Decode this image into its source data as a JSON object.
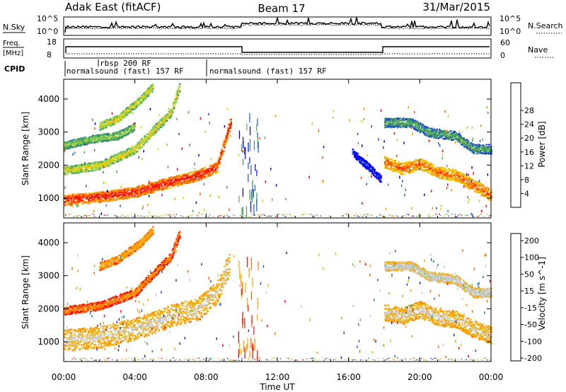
{
  "header": {
    "station": "Adak East (fitACF)",
    "beam": "Beam 17",
    "date": "31/Mar/2015"
  },
  "noise_panel": {
    "left_label": "N.Sky",
    "left_ticks": [
      "10^5",
      "10^0"
    ],
    "right_label": "N.Search",
    "right_ticks": [
      "10^5",
      "10^0"
    ]
  },
  "freq_panel": {
    "left_label_1": "Freq.",
    "left_label_2": "[MHz]",
    "left_ticks": [
      "18",
      "8"
    ],
    "right_label": "Nave",
    "right_ticks": [
      "60",
      "0"
    ]
  },
  "cpid": {
    "label": "CPID",
    "modes": [
      {
        "text": "normalsound (fast) 157 RF",
        "start_hour": 0
      },
      {
        "text": "rbsp 200 RF",
        "start_hour": 2
      },
      {
        "text": "normalsound (fast) 157 RF",
        "start_hour": 8.2
      }
    ]
  },
  "colors": {
    "power": [
      "#0000ff",
      "#2255cc",
      "#3a8a6a",
      "#4fae5a",
      "#a6d44a",
      "#f2d000",
      "#ff9a00",
      "#ff5500",
      "#ff0000"
    ],
    "velocity": [
      "#ff0000",
      "#ff6a00",
      "#ff9a00",
      "#f0b000",
      "#c8c8c8",
      "#c8c8c8",
      "#66cc33",
      "#2a8a6a",
      "#2255cc",
      "#1a2a99"
    ]
  },
  "chart_data": [
    {
      "type": "heatmap",
      "panel": "power",
      "xlabel": "Time UT",
      "ylabel": "Slant Range [km]",
      "xlim": [
        0,
        24
      ],
      "ylim": [
        400,
        4600
      ],
      "x_ticks": [
        "00:00",
        "04:00",
        "08:00",
        "12:00",
        "16:00",
        "20:00",
        "00:00"
      ],
      "y_ticks": [
        "1000",
        "2000",
        "3000",
        "4000"
      ],
      "colorbar": {
        "label": "Power [dB]",
        "ticks": [
          "4",
          "8",
          "12",
          "16",
          "20",
          "24",
          "28"
        ]
      },
      "bands": [
        {
          "name": "band-a",
          "points": [
            [
              0,
              950
            ],
            [
              2,
              1050
            ],
            [
              4,
              1200
            ],
            [
              6,
              1500
            ],
            [
              7.5,
              1700
            ],
            [
              8.6,
              1950
            ],
            [
              9.4,
              3400
            ]
          ],
          "width": 200,
          "level": 8
        },
        {
          "name": "band-b",
          "points": [
            [
              0,
              1850
            ],
            [
              2,
              2000
            ],
            [
              4,
              2500
            ],
            [
              6,
              3600
            ],
            [
              6.5,
              4400
            ]
          ],
          "width": 160,
          "level": 5
        },
        {
          "name": "band-c",
          "points": [
            [
              2,
              3200
            ],
            [
              3,
              3400
            ],
            [
              4.3,
              4000
            ],
            [
              5,
              4400
            ]
          ],
          "width": 150,
          "level": 5
        },
        {
          "name": "band-d",
          "points": [
            [
              0,
              2600
            ],
            [
              1.5,
              2800
            ],
            [
              3,
              2900
            ],
            [
              4,
              3200
            ]
          ],
          "width": 150,
          "level": 4
        },
        {
          "name": "band-e",
          "points": [
            [
              18,
              2100
            ],
            [
              19,
              1900
            ],
            [
              20,
              2050
            ],
            [
              21,
              1800
            ],
            [
              22,
              1700
            ],
            [
              23,
              1400
            ],
            [
              24,
              1100
            ]
          ],
          "width": 220,
          "level": 7
        },
        {
          "name": "band-f",
          "points": [
            [
              18,
              3300
            ],
            [
              19.5,
              3300
            ],
            [
              20.5,
              3000
            ],
            [
              22,
              2900
            ],
            [
              23,
              2500
            ],
            [
              24,
              2500
            ]
          ],
          "width": 180,
          "level": 3
        },
        {
          "name": "band-g",
          "points": [
            [
              16.2,
              2400
            ],
            [
              17,
              2000
            ],
            [
              17.8,
              1600
            ]
          ],
          "width": 140,
          "level": 1
        }
      ]
    },
    {
      "type": "heatmap",
      "panel": "velocity",
      "xlabel": "Time UT",
      "ylabel": "Slant Range [km]",
      "xlim": [
        0,
        24
      ],
      "ylim": [
        400,
        4600
      ],
      "x_ticks": [
        "00:00",
        "04:00",
        "08:00",
        "12:00",
        "16:00",
        "20:00",
        "00:00"
      ],
      "y_ticks": [
        "1000",
        "2000",
        "3000",
        "4000"
      ],
      "colorbar": {
        "label": "Velocity [m s^-1]",
        "ticks": [
          "200",
          "100",
          "50",
          "15",
          "-15",
          "-50",
          "-100",
          "-200"
        ]
      },
      "bands": [
        {
          "name": "band-a",
          "points": [
            [
              0,
              1050
            ],
            [
              2,
              1150
            ],
            [
              4,
              1400
            ],
            [
              6,
              1800
            ],
            [
              7.5,
              2000
            ],
            [
              8.6,
              2500
            ],
            [
              9.3,
              3400
            ]
          ],
          "width": 420,
          "level": 4
        },
        {
          "name": "band-b",
          "points": [
            [
              0,
              1950
            ],
            [
              2,
              2100
            ],
            [
              4,
              2500
            ],
            [
              6,
              3600
            ],
            [
              6.5,
              4300
            ]
          ],
          "width": 160,
          "level": 2
        },
        {
          "name": "band-c",
          "points": [
            [
              2,
              3300
            ],
            [
              3,
              3500
            ],
            [
              4.3,
              4000
            ],
            [
              5,
              4400
            ]
          ],
          "width": 150,
          "level": 3
        },
        {
          "name": "band-e",
          "points": [
            [
              18,
              1900
            ],
            [
              19,
              1800
            ],
            [
              20,
              2000
            ],
            [
              21,
              1750
            ],
            [
              22,
              1700
            ],
            [
              23,
              1400
            ],
            [
              24,
              1200
            ]
          ],
          "width": 320,
          "level": 4
        },
        {
          "name": "band-f",
          "points": [
            [
              18,
              3300
            ],
            [
              19.5,
              3300
            ],
            [
              20.5,
              3000
            ],
            [
              22,
              2900
            ],
            [
              23,
              2500
            ],
            [
              24,
              2500
            ]
          ],
          "width": 180,
          "level": 5
        }
      ]
    }
  ]
}
